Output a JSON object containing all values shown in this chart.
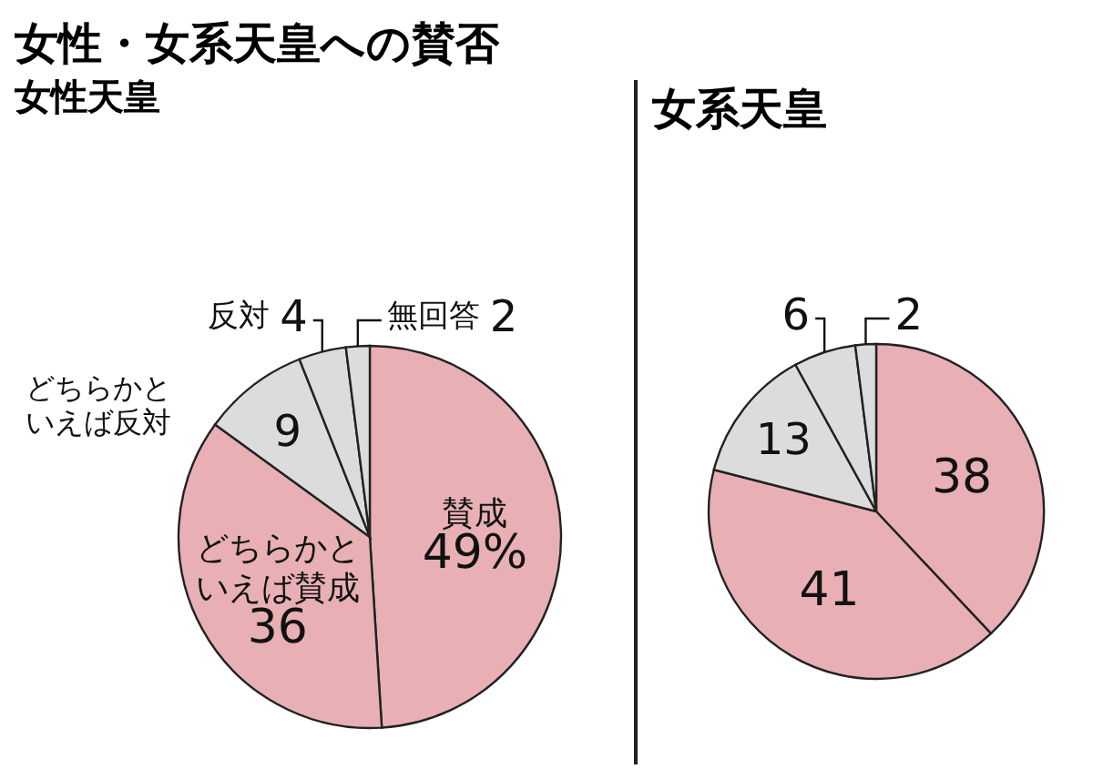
{
  "chart_data": [
    {
      "type": "pie",
      "title": "女性・女系天皇への賛否",
      "subtitle": "女性天皇",
      "categories": [
        "賛成",
        "どちらかといえば賛成",
        "どちらかといえば反対",
        "反対",
        "無回答"
      ],
      "values": [
        49,
        36,
        9,
        4,
        2
      ],
      "value_labels": [
        "49%",
        "36",
        "9",
        "4",
        "2"
      ],
      "colors": [
        "#e8b0b4",
        "#e8b0b4",
        "#dcdcdc",
        "#dcdcdc",
        "#dcdcdc"
      ],
      "legend": false
    },
    {
      "type": "pie",
      "title": "女系天皇",
      "categories": [
        null,
        null,
        null,
        null,
        null
      ],
      "values": [
        38,
        41,
        13,
        6,
        2
      ],
      "value_labels": [
        "38",
        "41",
        "13",
        "6",
        "2"
      ],
      "colors": [
        "#e8b0b4",
        "#e8b0b4",
        "#dcdcdc",
        "#dcdcdc",
        "#dcdcdc"
      ],
      "legend": false
    }
  ]
}
